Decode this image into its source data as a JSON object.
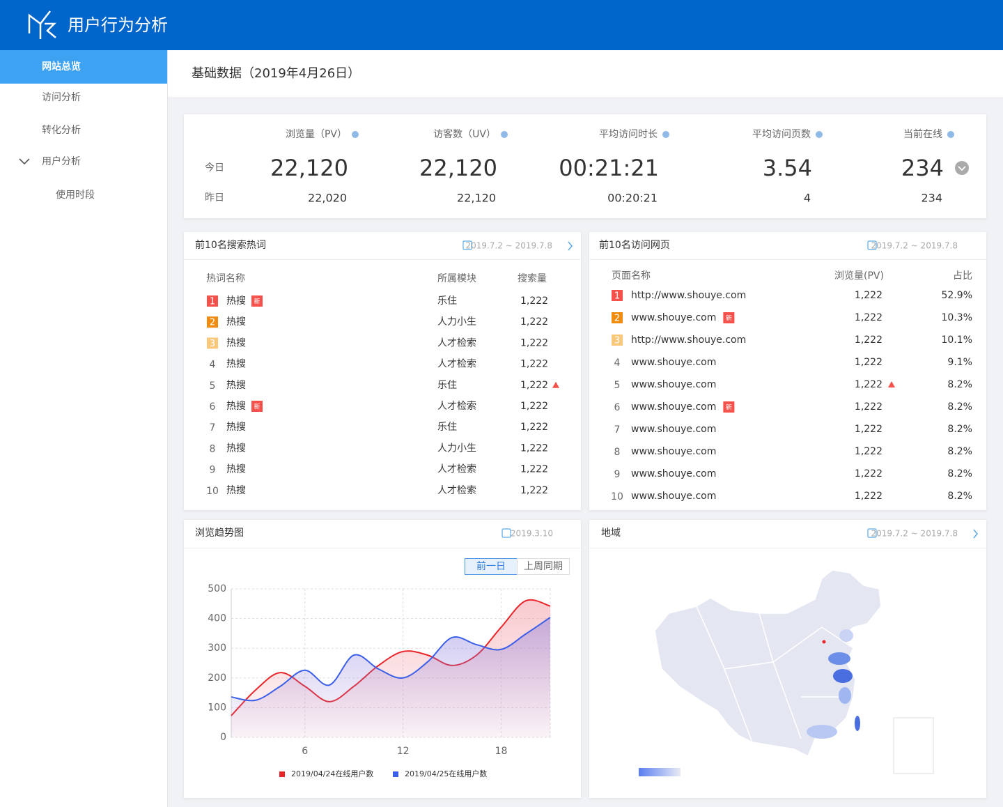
{
  "header": {
    "title": "用户行为分析"
  },
  "sidebar": {
    "items": [
      "网站总览",
      "访问分析",
      "转化分析",
      "用户分析",
      "使用时段"
    ]
  },
  "page_title": "基础数据（2019年4月26日）",
  "stats": {
    "row_labels": [
      "今日",
      "昨日"
    ],
    "columns": [
      {
        "label": "浏览量（PV）",
        "today": "22,120",
        "yesterday": "22,020"
      },
      {
        "label": "访客数（UV）",
        "today": "22,120",
        "yesterday": "22,120"
      },
      {
        "label": "平均访问时长",
        "today": "00:21:21",
        "yesterday": "00:20:21"
      },
      {
        "label": "平均访问页数",
        "today": "3.54",
        "yesterday": "4"
      },
      {
        "label": "当前在线",
        "today": "234",
        "yesterday": "234"
      }
    ]
  },
  "search_words": {
    "title": "前10名搜索热词",
    "date": "2019.7.2 ~ 2019.7.8",
    "headers": [
      "热词名称",
      "所属模块",
      "搜索量"
    ],
    "rows": [
      {
        "rank": "1",
        "word": "热搜",
        "tag": "新",
        "module": "乐住",
        "count": "1,222"
      },
      {
        "rank": "2",
        "word": "热搜",
        "module": "人力小生",
        "count": "1,222"
      },
      {
        "rank": "3",
        "word": "热搜",
        "module": "人才检索",
        "count": "1,222"
      },
      {
        "rank": "4",
        "word": "热搜",
        "module": "人才检索",
        "count": "1,222"
      },
      {
        "rank": "5",
        "word": "热搜",
        "module": "乐住",
        "count": "1,222",
        "trend": "up"
      },
      {
        "rank": "6",
        "word": "热搜",
        "tag": "新",
        "module": "人才检索",
        "count": "1,222"
      },
      {
        "rank": "7",
        "word": "热搜",
        "module": "乐住",
        "count": "1,222"
      },
      {
        "rank": "8",
        "word": "热搜",
        "module": "人力小生",
        "count": "1,222"
      },
      {
        "rank": "9",
        "word": "热搜",
        "module": "人才检索",
        "count": "1,222"
      },
      {
        "rank": "10",
        "word": "热搜",
        "module": "人才检索",
        "count": "1,222"
      }
    ]
  },
  "top_pages": {
    "title": "前10名访问网页",
    "date": "2019.7.2 ~ 2019.7.8",
    "headers": [
      "页面名称",
      "浏览量(PV)",
      "占比"
    ],
    "rows": [
      {
        "rank": "1",
        "url": "http://www.shouye.com",
        "pv": "1,222",
        "share": "52.9%"
      },
      {
        "rank": "2",
        "url": "www.shouye.com",
        "tag": "新",
        "pv": "1,222",
        "share": "10.3%"
      },
      {
        "rank": "3",
        "url": "http://www.shouye.com",
        "pv": "1,222",
        "share": "10.1%"
      },
      {
        "rank": "4",
        "url": "www.shouye.com",
        "pv": "1,222",
        "share": "9.1%"
      },
      {
        "rank": "5",
        "url": "www.shouye.com",
        "pv": "1,222",
        "share": "8.2%",
        "trend": "up"
      },
      {
        "rank": "6",
        "url": "www.shouye.com",
        "tag": "新",
        "pv": "1,222",
        "share": "8.2%"
      },
      {
        "rank": "7",
        "url": "www.shouye.com",
        "pv": "1,222",
        "share": "8.2%"
      },
      {
        "rank": "8",
        "url": "www.shouye.com",
        "pv": "1,222",
        "share": "8.2%"
      },
      {
        "rank": "9",
        "url": "www.shouye.com",
        "pv": "1,222",
        "share": "8.2%"
      },
      {
        "rank": "10",
        "url": "www.shouye.com",
        "pv": "1,222",
        "share": "8.2%"
      }
    ]
  },
  "chart_data": {
    "type": "line",
    "title": "浏览趋势图",
    "date": "2019.3.10",
    "tabs": [
      "前一日",
      "上周同期"
    ],
    "x": [
      1.5,
      3,
      4.5,
      6,
      7.5,
      9,
      10.5,
      12,
      13.5,
      15,
      16.5,
      18,
      19.5,
      21
    ],
    "xlim": [
      1.5,
      21
    ],
    "xticks": [
      6,
      12,
      18
    ],
    "ylim": [
      0,
      500
    ],
    "yticks": [
      0,
      100,
      200,
      300,
      400,
      500
    ],
    "grid": true,
    "series": [
      {
        "name": "2019/04/24在线用户数",
        "color": "#e8262a",
        "values": [
          73,
          160,
          218,
          172,
          120,
          172,
          242,
          289,
          277,
          242,
          277,
          371,
          460,
          442
        ]
      },
      {
        "name": "2019/04/25在线用户数",
        "color": "#3a5ee8",
        "values": [
          136,
          125,
          172,
          226,
          176,
          277,
          230,
          200,
          254,
          336,
          312,
          296,
          348,
          404
        ]
      }
    ]
  },
  "map": {
    "title": "地域",
    "date": "2019.7.2 ~ 2019.7.8"
  }
}
